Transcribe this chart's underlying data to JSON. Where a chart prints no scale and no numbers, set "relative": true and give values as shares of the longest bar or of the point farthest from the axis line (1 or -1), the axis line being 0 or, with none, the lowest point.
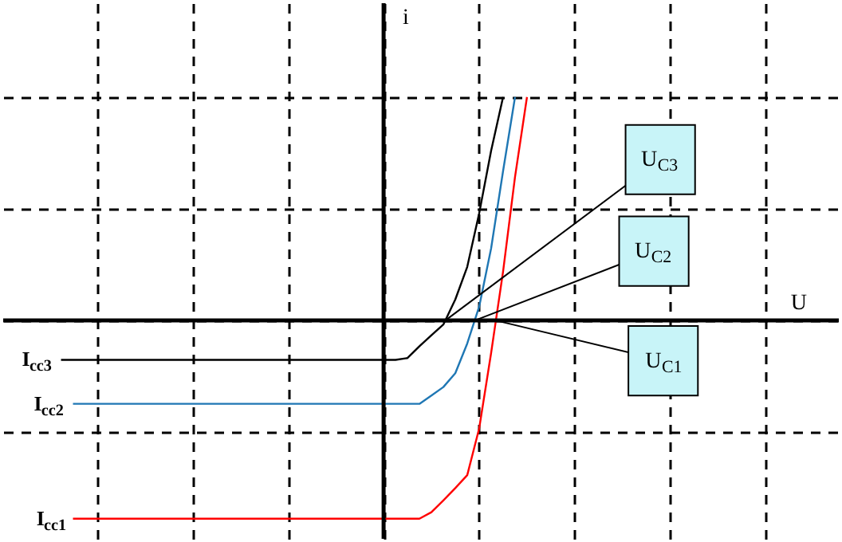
{
  "chart_data": {
    "type": "line",
    "relative": true,
    "categories": [
      null,
      null,
      null,
      null,
      null,
      null,
      null,
      null,
      null,
      null,
      null,
      null,
      null,
      null,
      null,
      null,
      null,
      null,
      null,
      null,
      null,
      null,
      null,
      null,
      null,
      null,
      null,
      null,
      null,
      null,
      null,
      null,
      null,
      null,
      null,
      null,
      null,
      null,
      null,
      null
    ],
    "tick_labels": false,
    "grid": true,
    "marker": "none",
    "line_style": "solid",
    "series": [
      {
        "color": "#000000",
        "values": [
          -0.176,
          -0.176,
          -0.176,
          -0.176,
          -0.176,
          -0.176,
          -0.176,
          -0.176,
          -0.176,
          -0.176,
          -0.176,
          -0.176,
          -0.176,
          -0.176,
          -0.176,
          -0.176,
          -0.176,
          -0.176,
          -0.176,
          -0.176,
          -0.176,
          -0.176,
          -0.176,
          -0.176,
          -0.176,
          -0.176,
          -0.176,
          -0.176,
          -0.176,
          -0.168,
          -0.115,
          -0.066,
          -0.018,
          0.094,
          0.24,
          0.48,
          0.76,
          1,
          null,
          null
        ]
      },
      {
        "color": "#1f77b4",
        "values": [
          null,
          -0.373,
          -0.373,
          -0.373,
          -0.373,
          -0.373,
          -0.373,
          -0.373,
          -0.373,
          -0.373,
          -0.373,
          -0.373,
          -0.373,
          -0.373,
          -0.373,
          -0.373,
          -0.373,
          -0.373,
          -0.373,
          -0.373,
          -0.373,
          -0.373,
          -0.373,
          -0.373,
          -0.373,
          -0.373,
          -0.373,
          -0.373,
          -0.373,
          -0.373,
          -0.373,
          -0.336,
          -0.298,
          -0.236,
          -0.103,
          0.062,
          0.323,
          0.669,
          1,
          null
        ]
      },
      {
        "color": "#ff0000",
        "values": [
          null,
          -0.887,
          -0.887,
          -0.887,
          -0.887,
          -0.887,
          -0.887,
          -0.887,
          -0.887,
          -0.887,
          -0.887,
          -0.887,
          -0.887,
          -0.887,
          -0.887,
          -0.887,
          -0.887,
          -0.887,
          -0.887,
          -0.887,
          -0.887,
          -0.887,
          -0.887,
          -0.887,
          -0.887,
          -0.887,
          -0.887,
          -0.887,
          -0.887,
          -0.887,
          -0.887,
          -0.858,
          -0.805,
          -0.75,
          -0.692,
          -0.483,
          -0.145,
          0.219,
          0.643,
          1
        ]
      }
    ],
    "annotations": [
      "I$_{cc3}$",
      "I$_{cc2}$",
      "I$_{cc1}$",
      "U$_{C3}$",
      "U$_{C2}$",
      "U$_{C1}$",
      "U",
      "i"
    ]
  }
}
